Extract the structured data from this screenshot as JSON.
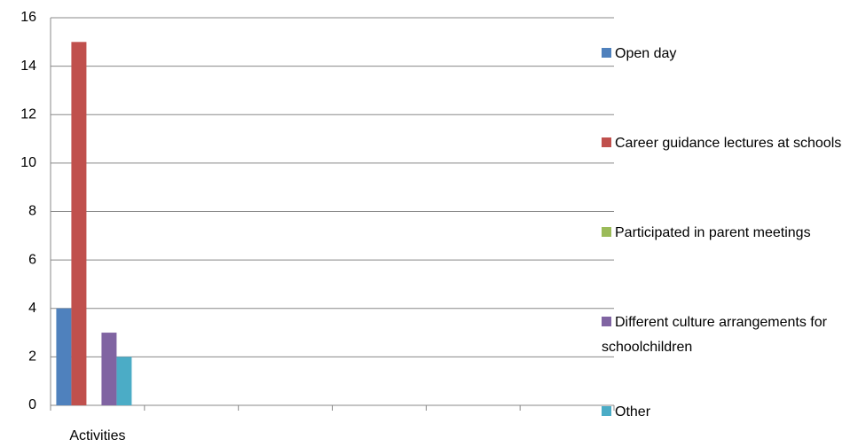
{
  "chart_data": {
    "type": "bar",
    "categories": [
      "Activities",
      null,
      null,
      null,
      null,
      null
    ],
    "series": [
      {
        "name": "Open day",
        "color": "#4f81bd",
        "values": [
          4,
          null,
          null,
          null,
          null,
          null
        ]
      },
      {
        "name": "Career guidance lectures at schools",
        "color": "#c0504d",
        "values": [
          15,
          null,
          null,
          null,
          null,
          null
        ]
      },
      {
        "name": "Participated in parent meetings",
        "color": "#9bbb59",
        "values": [
          0,
          null,
          null,
          null,
          null,
          null
        ]
      },
      {
        "name": "Different culture arrangements for schoolchildren",
        "color": "#8064a2",
        "values": [
          3,
          null,
          null,
          null,
          null,
          null
        ]
      },
      {
        "name": "Other",
        "color": "#4bacc6",
        "values": [
          2,
          null,
          null,
          null,
          null,
          null
        ]
      }
    ],
    "ylim": [
      0,
      16
    ],
    "yticks": [
      0,
      2,
      4,
      6,
      8,
      10,
      12,
      14,
      16
    ],
    "grid": true,
    "legend": "right"
  }
}
